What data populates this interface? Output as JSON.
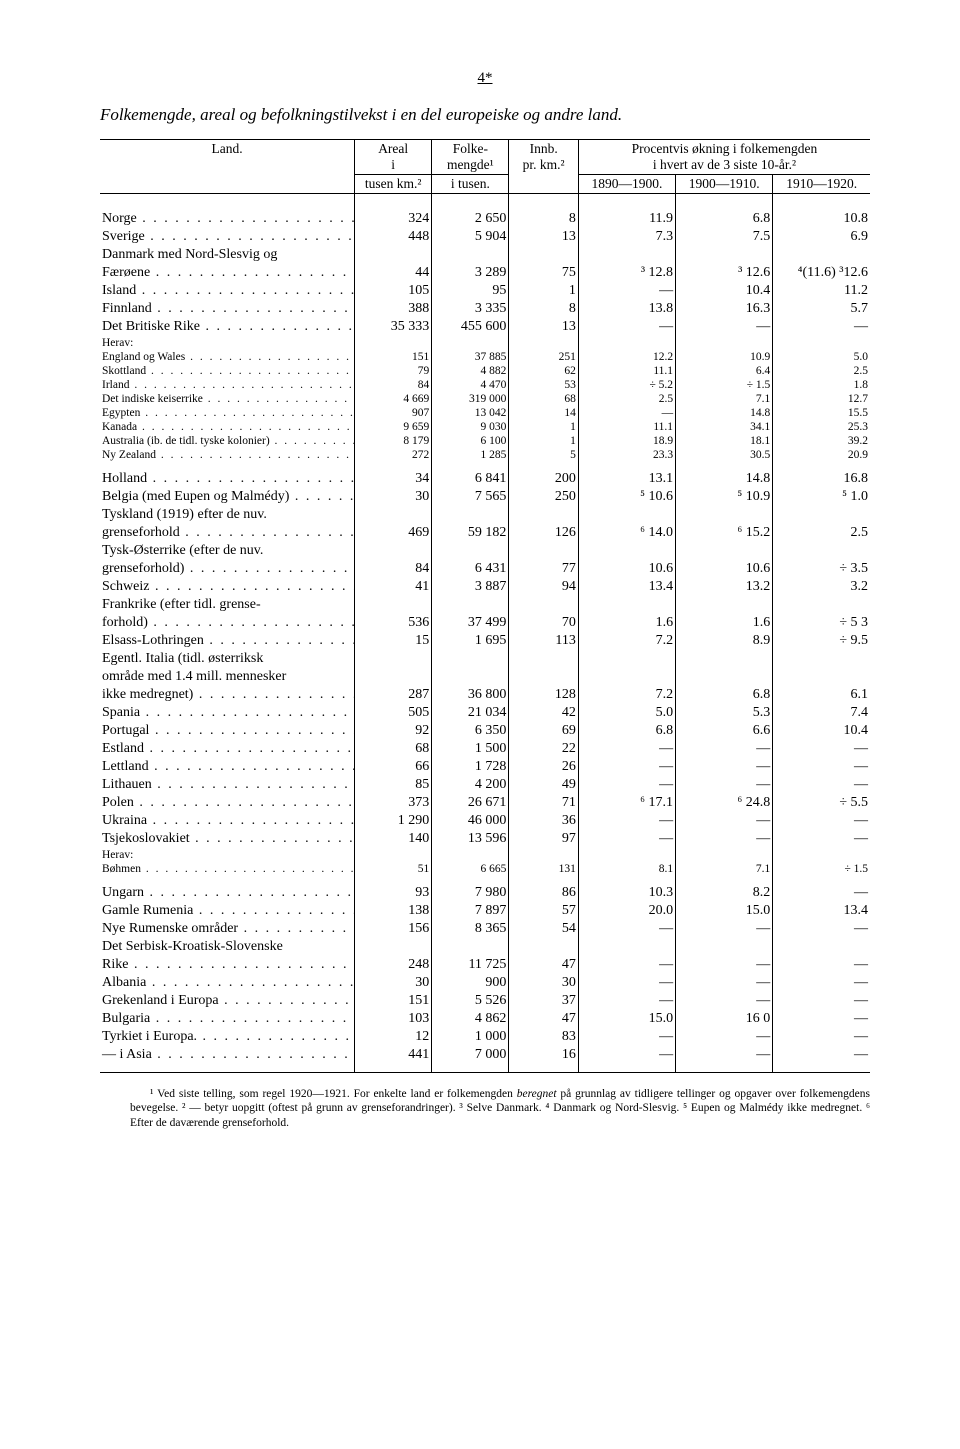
{
  "page_number": "4*",
  "title": "Folkemengde, areal og befolkningstilvekst i en del europeiske og andre land.",
  "headers": {
    "land": "Land.",
    "areal_top": "Areal",
    "areal_mid": "i",
    "areal_bot": "tusen km.²",
    "folk_top": "Folke-",
    "folk_mid": "mengde¹",
    "folk_bot": "i tusen.",
    "innb_top": "Innb.",
    "innb_bot": "pr. km.²",
    "percent_top": "Procentvis økning i folkemengden",
    "percent_bot": "i hvert av de 3 siste 10-år.²",
    "p1": "1890—1900.",
    "p2": "1900—1910.",
    "p3": "1910—1920."
  },
  "rows": [
    {
      "type": "spacer"
    },
    {
      "type": "spacer"
    },
    {
      "land": "Norge",
      "areal": "324",
      "folk": "2 650",
      "innb": "8",
      "p1": "11.9",
      "p2": "6.8",
      "p3": "10.8"
    },
    {
      "land": "Sverige",
      "areal": "448",
      "folk": "5 904",
      "innb": "13",
      "p1": "7.3",
      "p2": "7.5",
      "p3": "6.9"
    },
    {
      "land": "Danmark med Nord-Slesvig og",
      "areal": "",
      "folk": "",
      "innb": "",
      "p1": "",
      "p2": "",
      "p3": ""
    },
    {
      "land": "Færøene",
      "indent": 1,
      "areal": "44",
      "folk": "3 289",
      "innb": "75",
      "p1": "³ 12.8",
      "p2": "³ 12.6",
      "p3": "⁴(11.6) ³12.6"
    },
    {
      "land": "Island",
      "areal": "105",
      "folk": "95",
      "innb": "1",
      "p1": "—",
      "p2": "10.4",
      "p3": "11.2"
    },
    {
      "land": "Finnland",
      "areal": "388",
      "folk": "3 335",
      "innb": "8",
      "p1": "13.8",
      "p2": "16.3",
      "p3": "5.7"
    },
    {
      "land": "Det Britiske Rike",
      "areal": "35 333",
      "folk": "455 600",
      "innb": "13",
      "p1": "—",
      "p2": "—",
      "p3": "—"
    },
    {
      "type": "herav",
      "text": "Herav:"
    },
    {
      "size": "small",
      "land": "England og Wales",
      "areal": "151",
      "folk": "37 885",
      "innb": "251",
      "p1": "12.2",
      "p2": "10.9",
      "p3": "5.0"
    },
    {
      "size": "small",
      "land": "Skottland",
      "areal": "79",
      "folk": "4 882",
      "innb": "62",
      "p1": "11.1",
      "p2": "6.4",
      "p3": "2.5"
    },
    {
      "size": "small",
      "land": "Irland",
      "areal": "84",
      "folk": "4 470",
      "innb": "53",
      "p1": "÷ 5.2",
      "p2": "÷ 1.5",
      "p3": "1.8"
    },
    {
      "size": "small",
      "land": "Det indiske keiserrike",
      "areal": "4 669",
      "folk": "319 000",
      "innb": "68",
      "p1": "2.5",
      "p2": "7.1",
      "p3": "12.7"
    },
    {
      "size": "small",
      "land": "Egypten",
      "areal": "907",
      "folk": "13 042",
      "innb": "14",
      "p1": "—",
      "p2": "14.8",
      "p3": "15.5"
    },
    {
      "size": "small",
      "land": "Kanada",
      "areal": "9 659",
      "folk": "9 030",
      "innb": "1",
      "p1": "11.1",
      "p2": "34.1",
      "p3": "25.3"
    },
    {
      "size": "small",
      "land": "Australia (ib. de tidl. tyske kolonier)",
      "areal": "8 179",
      "folk": "6 100",
      "innb": "1",
      "p1": "18.9",
      "p2": "18.1",
      "p3": "39.2"
    },
    {
      "size": "small",
      "land": "Ny Zealand",
      "areal": "272",
      "folk": "1 285",
      "innb": "5",
      "p1": "23.3",
      "p2": "30.5",
      "p3": "20.9"
    },
    {
      "type": "spacer"
    },
    {
      "land": "Holland",
      "areal": "34",
      "folk": "6 841",
      "innb": "200",
      "p1": "13.1",
      "p2": "14.8",
      "p3": "16.8"
    },
    {
      "land": "Belgia (med Eupen og Malmédy)",
      "areal": "30",
      "folk": "7 565",
      "innb": "250",
      "p1": "⁵ 10.6",
      "p2": "⁵ 10.9",
      "p3": "⁵ 1.0"
    },
    {
      "land": "Tyskland (1919) efter de nuv.",
      "areal": "",
      "folk": "",
      "innb": "",
      "p1": "",
      "p2": "",
      "p3": ""
    },
    {
      "land": "grenseforhold",
      "indent": 1,
      "areal": "469",
      "folk": "59 182",
      "innb": "126",
      "p1": "⁶ 14.0",
      "p2": "⁶ 15.2",
      "p3": "2.5"
    },
    {
      "land": "Tysk-Østerrike (efter de nuv.",
      "areal": "",
      "folk": "",
      "innb": "",
      "p1": "",
      "p2": "",
      "p3": ""
    },
    {
      "land": "grenseforhold)",
      "indent": 1,
      "areal": "84",
      "folk": "6 431",
      "innb": "77",
      "p1": "10.6",
      "p2": "10.6",
      "p3": "÷ 3.5"
    },
    {
      "land": "Schweiz",
      "areal": "41",
      "folk": "3 887",
      "innb": "94",
      "p1": "13.4",
      "p2": "13.2",
      "p3": "3.2"
    },
    {
      "land": "Frankrike (efter tidl. grense-",
      "areal": "",
      "folk": "",
      "innb": "",
      "p1": "",
      "p2": "",
      "p3": ""
    },
    {
      "land": "forhold)",
      "indent": 1,
      "areal": "536",
      "folk": "37 499",
      "innb": "70",
      "p1": "1.6",
      "p2": "1.6",
      "p3": "÷ 5 3"
    },
    {
      "land": "Elsass-Lothringen",
      "areal": "15",
      "folk": "1 695",
      "innb": "113",
      "p1": "7.2",
      "p2": "8.9",
      "p3": "÷ 9.5"
    },
    {
      "land": "Egentl. Italia (tidl. østerriksk",
      "areal": "",
      "folk": "",
      "innb": "",
      "p1": "",
      "p2": "",
      "p3": ""
    },
    {
      "land": "område med 1.4 mill. mennesker",
      "indent": 1,
      "areal": "",
      "folk": "",
      "innb": "",
      "p1": "",
      "p2": "",
      "p3": ""
    },
    {
      "land": "ikke medregnet)",
      "indent": 1,
      "areal": "287",
      "folk": "36 800",
      "innb": "128",
      "p1": "7.2",
      "p2": "6.8",
      "p3": "6.1"
    },
    {
      "land": "Spania",
      "areal": "505",
      "folk": "21 034",
      "innb": "42",
      "p1": "5.0",
      "p2": "5.3",
      "p3": "7.4"
    },
    {
      "land": "Portugal",
      "areal": "92",
      "folk": "6 350",
      "innb": "69",
      "p1": "6.8",
      "p2": "6.6",
      "p3": "10.4"
    },
    {
      "land": "Estland",
      "areal": "68",
      "folk": "1 500",
      "innb": "22",
      "p1": "—",
      "p2": "—",
      "p3": "—"
    },
    {
      "land": "Lettland",
      "areal": "66",
      "folk": "1 728",
      "innb": "26",
      "p1": "—",
      "p2": "—",
      "p3": "—"
    },
    {
      "land": "Lithauen",
      "areal": "85",
      "folk": "4 200",
      "innb": "49",
      "p1": "—",
      "p2": "—",
      "p3": "—"
    },
    {
      "land": "Polen",
      "areal": "373",
      "folk": "26 671",
      "innb": "71",
      "p1": "⁶ 17.1",
      "p2": "⁶ 24.8",
      "p3": "÷ 5.5"
    },
    {
      "land": "Ukraina",
      "areal": "1 290",
      "folk": "46 000",
      "innb": "36",
      "p1": "—",
      "p2": "—",
      "p3": "—"
    },
    {
      "land": "Tsjekoslovakiet",
      "areal": "140",
      "folk": "13 596",
      "innb": "97",
      "p1": "—",
      "p2": "—",
      "p3": "—"
    },
    {
      "type": "herav",
      "text": "Herav:"
    },
    {
      "size": "small",
      "land": "Bøhmen",
      "areal": "51",
      "folk": "6 665",
      "innb": "131",
      "p1": "8.1",
      "p2": "7.1",
      "p3": "÷ 1.5"
    },
    {
      "type": "spacer"
    },
    {
      "land": "Ungarn",
      "areal": "93",
      "folk": "7 980",
      "innb": "86",
      "p1": "10.3",
      "p2": "8.2",
      "p3": "—"
    },
    {
      "land": "Gamle Rumenia",
      "areal": "138",
      "folk": "7 897",
      "innb": "57",
      "p1": "20.0",
      "p2": "15.0",
      "p3": "13.4"
    },
    {
      "land": "Nye Rumenske områder",
      "areal": "156",
      "folk": "8 365",
      "innb": "54",
      "p1": "—",
      "p2": "—",
      "p3": "—"
    },
    {
      "land": "Det Serbisk-Kroatisk-Slovenske",
      "areal": "",
      "folk": "",
      "innb": "",
      "p1": "",
      "p2": "",
      "p3": ""
    },
    {
      "land": "Rike",
      "indent": 1,
      "areal": "248",
      "folk": "11 725",
      "innb": "47",
      "p1": "—",
      "p2": "—",
      "p3": "—"
    },
    {
      "land": "Albania",
      "areal": "30",
      "folk": "900",
      "innb": "30",
      "p1": "—",
      "p2": "—",
      "p3": "—"
    },
    {
      "land": "Grekenland i Europa",
      "areal": "151",
      "folk": "5 526",
      "innb": "37",
      "p1": "—",
      "p2": "—",
      "p3": "—"
    },
    {
      "land": "Bulgaria",
      "areal": "103",
      "folk": "4 862",
      "innb": "47",
      "p1": "15.0",
      "p2": "16 0",
      "p3": "—"
    },
    {
      "land": "Tyrkiet i Europa.",
      "areal": "12",
      "folk": "1 000",
      "innb": "83",
      "p1": "—",
      "p2": "—",
      "p3": "—"
    },
    {
      "land": " —    i Asia",
      "indent": 1,
      "areal": "441",
      "folk": "7 000",
      "innb": "16",
      "p1": "—",
      "p2": "—",
      "p3": "—"
    },
    {
      "type": "spacer",
      "last": true
    }
  ],
  "footnotes": "¹ Ved siste telling, som regel 1920—1921. For enkelte land er folkemengden <i>beregnet</i> på grunnlag av tidligere tellinger og opgaver over folkemengdens bevegelse.   ² — betyr uopgitt (oftest på grunn av grenseforandringer).   ³ Selve Danmark.   ⁴ Danmark og Nord-Slesvig.   ⁵ Eupen og Malmédy ikke medregnet.   ⁶ Efter de daværende grenseforhold."
}
